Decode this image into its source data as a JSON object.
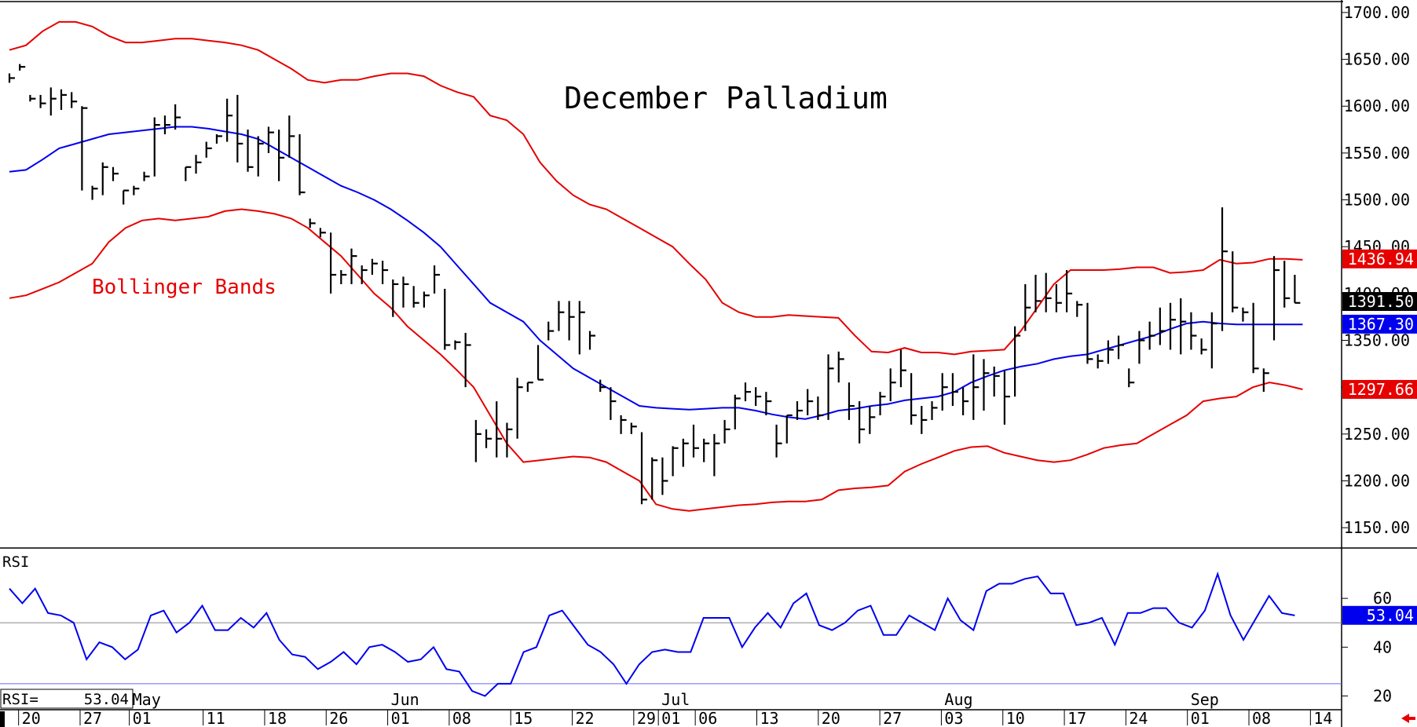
{
  "chart_data": {
    "type": "ohlc",
    "title": "December Palladium",
    "annotation": "Bollinger Bands",
    "y_axis": {
      "ylim": [
        1130,
        1710
      ],
      "ticks": [
        "1700.00",
        "1650.00",
        "1600.00",
        "1550.00",
        "1500.00",
        "1450.00",
        "1400.00",
        "1350.00",
        "1300.00",
        "1250.00",
        "1200.00",
        "1150.00"
      ]
    },
    "tags": [
      {
        "label": "1436.94",
        "value": 1436.94,
        "color": "#e60000"
      },
      {
        "label": "1391.50",
        "value": 1391.5,
        "color": "#000000"
      },
      {
        "label": "1367.30",
        "value": 1367.3,
        "color": "#0000ee"
      },
      {
        "label": "1297.66",
        "value": 1297.66,
        "color": "#e60000"
      }
    ],
    "x_axis": {
      "day_labels": [
        "20",
        "27",
        "01",
        "11",
        "18",
        "26",
        "01",
        "08",
        "15",
        "22",
        "29",
        "01",
        "06",
        "13",
        "20",
        "27",
        "03",
        "10",
        "17",
        "24",
        "01",
        "08",
        "14"
      ],
      "day_label_index": [
        1,
        6,
        10,
        16,
        21,
        26,
        31,
        36,
        41,
        46,
        51,
        53,
        56,
        61,
        66,
        71,
        76,
        81,
        86,
        91,
        96,
        101,
        106
      ],
      "month_labels": [
        "May",
        "Jun",
        "Jul",
        "Aug",
        "Sep"
      ],
      "month_label_index": [
        10,
        31,
        53,
        76,
        96
      ],
      "n_slots": 108
    },
    "bars": [
      [
        1635,
        1625,
        1630
      ],
      [
        1645,
        1638,
        1642
      ],
      [
        1612,
        1605,
        1608
      ],
      [
        1612,
        1598,
        1603
      ],
      [
        1620,
        1590,
        1608
      ],
      [
        1618,
        1596,
        1612
      ],
      [
        1615,
        1598,
        1605
      ],
      [
        1600,
        1510,
        1598
      ],
      [
        1515,
        1500,
        1512
      ],
      [
        1540,
        1505,
        1535
      ],
      [
        1535,
        1520,
        1528
      ],
      [
        1510,
        1495,
        1510
      ],
      [
        1515,
        1505,
        1512
      ],
      [
        1530,
        1520,
        1525
      ],
      [
        1588,
        1525,
        1580
      ],
      [
        1590,
        1570,
        1580
      ],
      [
        1602,
        1575,
        1588
      ],
      [
        1530,
        1520,
        1535
      ],
      [
        1548,
        1528,
        1540
      ],
      [
        1562,
        1545,
        1555
      ],
      [
        1570,
        1560,
        1568
      ],
      [
        1608,
        1562,
        1590
      ],
      [
        1612,
        1540,
        1560
      ],
      [
        1575,
        1530,
        1535
      ],
      [
        1568,
        1525,
        1560
      ],
      [
        1578,
        1550,
        1572
      ],
      [
        1575,
        1520,
        1545
      ],
      [
        1590,
        1545,
        1568
      ],
      [
        1570,
        1505,
        1508
      ],
      [
        1480,
        1470,
        1475
      ],
      [
        1470,
        1460,
        1465
      ],
      [
        1465,
        1400,
        1420
      ],
      [
        1425,
        1410,
        1420
      ],
      [
        1448,
        1410,
        1440
      ],
      [
        1430,
        1410,
        1425
      ],
      [
        1437,
        1420,
        1432
      ],
      [
        1435,
        1410,
        1425
      ],
      [
        1415,
        1375,
        1410
      ],
      [
        1418,
        1385,
        1410
      ],
      [
        1408,
        1385,
        1390
      ],
      [
        1402,
        1385,
        1398
      ],
      [
        1430,
        1400,
        1420
      ],
      [
        1405,
        1340,
        1345
      ],
      [
        1350,
        1340,
        1348
      ],
      [
        1358,
        1300,
        1345
      ],
      [
        1265,
        1220,
        1250
      ],
      [
        1255,
        1235,
        1245
      ],
      [
        1285,
        1225,
        1245
      ],
      [
        1262,
        1225,
        1255
      ],
      [
        1310,
        1245,
        1300
      ],
      [
        1302,
        1295,
        1305
      ],
      [
        1340,
        1345,
        1308
      ],
      [
        1370,
        1350,
        1360
      ],
      [
        1392,
        1360,
        1380
      ],
      [
        1392,
        1350,
        1375
      ],
      [
        1392,
        1335,
        1380
      ],
      [
        1360,
        1340,
        1355
      ],
      [
        1308,
        1295,
        1300
      ],
      [
        1300,
        1265,
        1285
      ],
      [
        1270,
        1250,
        1265
      ],
      [
        1262,
        1250,
        1258
      ],
      [
        1252,
        1175,
        1180
      ],
      [
        1225,
        1180,
        1222
      ],
      [
        1225,
        1185,
        1200
      ],
      [
        1237,
        1205,
        1235
      ],
      [
        1245,
        1215,
        1240
      ],
      [
        1260,
        1225,
        1235
      ],
      [
        1245,
        1220,
        1240
      ],
      [
        1250,
        1205,
        1240
      ],
      [
        1265,
        1240,
        1255
      ],
      [
        1292,
        1255,
        1288
      ],
      [
        1305,
        1285,
        1295
      ],
      [
        1300,
        1280,
        1290
      ],
      [
        1295,
        1270,
        1285
      ],
      [
        1260,
        1225,
        1240
      ],
      [
        1270,
        1240,
        1270
      ],
      [
        1285,
        1265,
        1275
      ],
      [
        1298,
        1270,
        1285
      ],
      [
        1290,
        1265,
        1270
      ],
      [
        1335,
        1265,
        1320
      ],
      [
        1338,
        1305,
        1330
      ],
      [
        1305,
        1265,
        1280
      ],
      [
        1285,
        1240,
        1255
      ],
      [
        1280,
        1250,
        1268
      ],
      [
        1295,
        1270,
        1290
      ],
      [
        1320,
        1285,
        1305
      ],
      [
        1340,
        1300,
        1318
      ],
      [
        1315,
        1260,
        1270
      ],
      [
        1280,
        1250,
        1265
      ],
      [
        1285,
        1265,
        1278
      ],
      [
        1315,
        1275,
        1300
      ],
      [
        1315,
        1280,
        1295
      ],
      [
        1300,
        1270,
        1285
      ],
      [
        1335,
        1265,
        1300
      ],
      [
        1330,
        1275,
        1315
      ],
      [
        1322,
        1290,
        1312
      ],
      [
        1318,
        1260,
        1290
      ],
      [
        1365,
        1290,
        1355
      ],
      [
        1410,
        1360,
        1385
      ],
      [
        1420,
        1380,
        1392
      ],
      [
        1422,
        1380,
        1395
      ],
      [
        1410,
        1380,
        1390
      ],
      [
        1425,
        1380,
        1400
      ],
      [
        1392,
        1375,
        1388
      ],
      [
        1390,
        1325,
        1330
      ],
      [
        1335,
        1320,
        1328
      ],
      [
        1350,
        1325,
        1340
      ],
      [
        1355,
        1330,
        1345
      ],
      [
        1320,
        1300,
        1305
      ],
      [
        1360,
        1325,
        1350
      ],
      [
        1370,
        1340,
        1355
      ],
      [
        1385,
        1345,
        1360
      ],
      [
        1390,
        1340,
        1372
      ],
      [
        1395,
        1335,
        1370
      ],
      [
        1380,
        1340,
        1355
      ],
      [
        1352,
        1335,
        1340
      ],
      [
        1380,
        1320,
        1368
      ],
      [
        1492,
        1360,
        1445
      ],
      [
        1445,
        1380,
        1385
      ],
      [
        1385,
        1370,
        1380
      ],
      [
        1390,
        1315,
        1320
      ],
      [
        1320,
        1295,
        1315
      ],
      [
        1440,
        1350,
        1425
      ],
      [
        1435,
        1385,
        1395
      ],
      [
        1420,
        1390,
        1390
      ]
    ],
    "upper_band": [
      1660,
      1665,
      1680,
      1690,
      1690,
      1685,
      1675,
      1668,
      1668,
      1670,
      1672,
      1672,
      1670,
      1668,
      1665,
      1660,
      1650,
      1640,
      1628,
      1625,
      1628,
      1628,
      1632,
      1635,
      1635,
      1632,
      1622,
      1615,
      1610,
      1590,
      1585,
      1570,
      1540,
      1520,
      1505,
      1495,
      1490,
      1480,
      1470,
      1460,
      1450,
      1432,
      1415,
      1390,
      1380,
      1375,
      1375,
      1377,
      1376,
      1375,
      1374,
      1355,
      1338,
      1337,
      1342,
      1337,
      1337,
      1335,
      1338,
      1339,
      1340,
      1360,
      1385,
      1410,
      1425,
      1425,
      1425,
      1426,
      1428,
      1428,
      1422,
      1423,
      1425,
      1436,
      1432,
      1433,
      1437,
      1437,
      1436
    ],
    "mid_band": [
      1530,
      1532,
      1543,
      1555,
      1560,
      1565,
      1570,
      1572,
      1574,
      1576,
      1578,
      1578,
      1576,
      1573,
      1570,
      1565,
      1555,
      1545,
      1535,
      1525,
      1515,
      1508,
      1500,
      1490,
      1478,
      1465,
      1450,
      1430,
      1410,
      1390,
      1380,
      1370,
      1350,
      1335,
      1320,
      1310,
      1300,
      1290,
      1280,
      1278,
      1277,
      1276,
      1277,
      1278,
      1278,
      1275,
      1271,
      1268,
      1266,
      1270,
      1275,
      1277,
      1280,
      1282,
      1286,
      1288,
      1290,
      1295,
      1305,
      1312,
      1318,
      1322,
      1325,
      1330,
      1333,
      1335,
      1340,
      1345,
      1350,
      1355,
      1362,
      1368,
      1370,
      1368,
      1367,
      1367,
      1367,
      1367,
      1367
    ],
    "lower_band": [
      1395,
      1398,
      1405,
      1412,
      1422,
      1432,
      1455,
      1470,
      1478,
      1480,
      1478,
      1480,
      1482,
      1488,
      1490,
      1488,
      1485,
      1480,
      1470,
      1455,
      1440,
      1420,
      1400,
      1385,
      1365,
      1350,
      1335,
      1318,
      1300,
      1270,
      1240,
      1220,
      1222,
      1224,
      1226,
      1225,
      1220,
      1210,
      1200,
      1175,
      1170,
      1168,
      1170,
      1172,
      1174,
      1175,
      1177,
      1178,
      1178,
      1180,
      1190,
      1192,
      1193,
      1195,
      1210,
      1218,
      1225,
      1232,
      1236,
      1237,
      1230,
      1226,
      1222,
      1220,
      1222,
      1228,
      1235,
      1238,
      1240,
      1250,
      1260,
      1270,
      1285,
      1288,
      1290,
      1300,
      1305,
      1302,
      1297.66
    ],
    "rsi": {
      "label": "RSI",
      "readout_label": "RSI=",
      "readout_value": "53.04",
      "tag": "53.04",
      "ticks": [
        "60",
        "40",
        "20"
      ],
      "ylim": [
        15,
        80
      ],
      "reference_lines": [
        50,
        25
      ],
      "values": [
        64,
        58,
        64,
        54,
        53,
        50,
        35,
        42,
        40,
        35,
        39,
        53,
        55,
        46,
        50,
        57,
        47,
        47,
        52,
        48,
        54,
        43,
        37,
        36,
        31,
        34,
        38,
        33,
        40,
        41,
        38,
        34,
        35,
        40,
        31,
        30,
        22,
        20,
        25,
        25,
        38,
        40,
        53,
        55,
        48,
        41,
        38,
        33,
        25,
        33,
        38,
        39,
        38,
        38,
        52,
        52,
        52,
        40,
        48,
        54,
        48,
        58,
        62,
        49,
        47,
        50,
        55,
        57,
        45,
        45,
        53,
        50,
        47,
        60,
        51,
        47,
        63,
        66,
        66,
        68,
        69,
        62,
        62,
        49,
        50,
        52,
        41,
        54,
        54,
        56,
        56,
        50,
        48,
        55,
        70,
        53,
        43,
        52,
        61,
        54,
        53
      ]
    }
  }
}
